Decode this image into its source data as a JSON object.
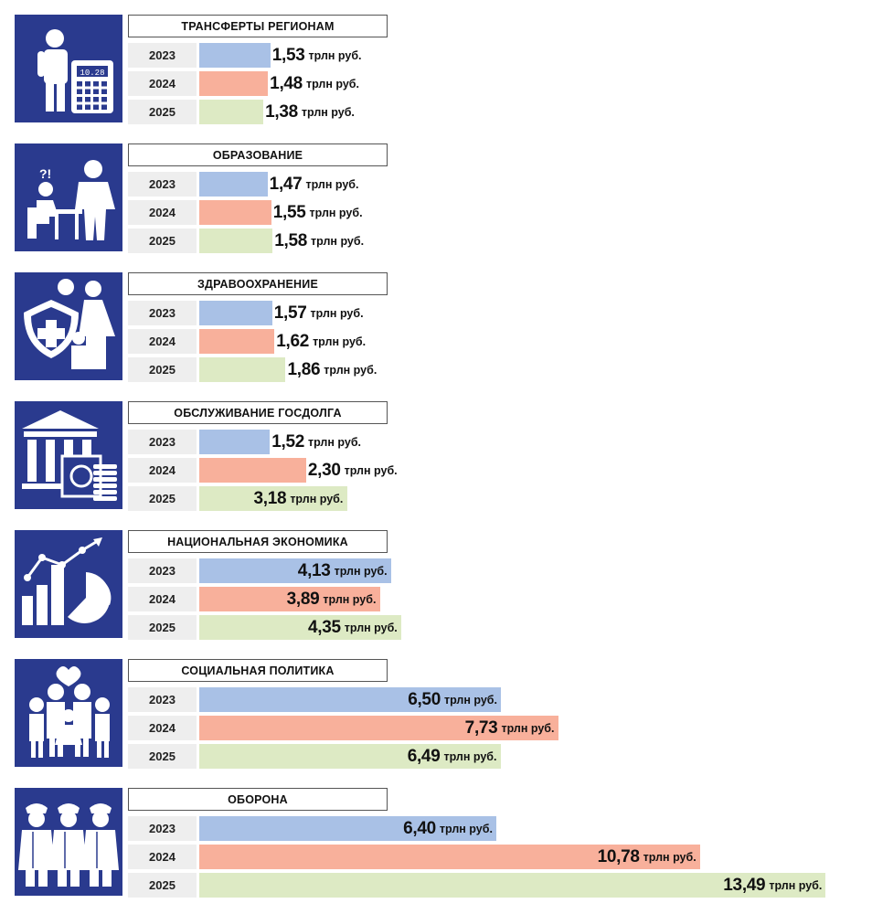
{
  "chart_data": {
    "type": "bar",
    "orientation": "horizontal",
    "unit": "трлн руб.",
    "series": [
      {
        "name": "2023",
        "color": "#a9c1e6"
      },
      {
        "name": "2024",
        "color": "#f8b09b"
      },
      {
        "name": "2025",
        "color": "#ddeac4"
      }
    ],
    "groups": [
      {
        "title": "ТРАНСФЕРТЫ РЕГИОНАМ",
        "icon": "calculator-person-icon",
        "rows": [
          {
            "year": "2023",
            "value": 1.53,
            "label": "1,53"
          },
          {
            "year": "2024",
            "value": 1.48,
            "label": "1,48"
          },
          {
            "year": "2025",
            "value": 1.38,
            "label": "1,38"
          }
        ]
      },
      {
        "title": "ОБРАЗОВАНИЕ",
        "icon": "teacher-student-icon",
        "rows": [
          {
            "year": "2023",
            "value": 1.47,
            "label": "1,47"
          },
          {
            "year": "2024",
            "value": 1.55,
            "label": "1,55"
          },
          {
            "year": "2025",
            "value": 1.58,
            "label": "1,58"
          }
        ]
      },
      {
        "title": "ЗДРАВООХРАНЕНИЕ",
        "icon": "health-shield-family-icon",
        "rows": [
          {
            "year": "2023",
            "value": 1.57,
            "label": "1,57"
          },
          {
            "year": "2024",
            "value": 1.62,
            "label": "1,62"
          },
          {
            "year": "2025",
            "value": 1.86,
            "label": "1,86"
          }
        ]
      },
      {
        "title": "ОБСЛУЖИВАНИЕ ГОСДОЛГА",
        "icon": "bank-safe-coins-icon",
        "rows": [
          {
            "year": "2023",
            "value": 1.52,
            "label": "1,52"
          },
          {
            "year": "2024",
            "value": 2.3,
            "label": "2,30"
          },
          {
            "year": "2025",
            "value": 3.18,
            "label": "3,18"
          }
        ]
      },
      {
        "title": "НАЦИОНАЛЬНАЯ ЭКОНОМИКА",
        "icon": "growth-chart-icon",
        "rows": [
          {
            "year": "2023",
            "value": 4.13,
            "label": "4,13"
          },
          {
            "year": "2024",
            "value": 3.89,
            "label": "3,89"
          },
          {
            "year": "2025",
            "value": 4.35,
            "label": "4,35"
          }
        ]
      },
      {
        "title": "СОЦИАЛЬНАЯ ПОЛИТИКА",
        "icon": "family-heart-icon",
        "rows": [
          {
            "year": "2023",
            "value": 6.5,
            "label": "6,50"
          },
          {
            "year": "2024",
            "value": 7.73,
            "label": "7,73"
          },
          {
            "year": "2025",
            "value": 6.49,
            "label": "6,49"
          }
        ]
      },
      {
        "title": "ОБОРОНА",
        "icon": "soldiers-salute-icon",
        "rows": [
          {
            "year": "2023",
            "value": 6.4,
            "label": "6,40"
          },
          {
            "year": "2024",
            "value": 10.78,
            "label": "10,78"
          },
          {
            "year": "2025",
            "value": 13.49,
            "label": "13,49"
          }
        ]
      }
    ]
  }
}
